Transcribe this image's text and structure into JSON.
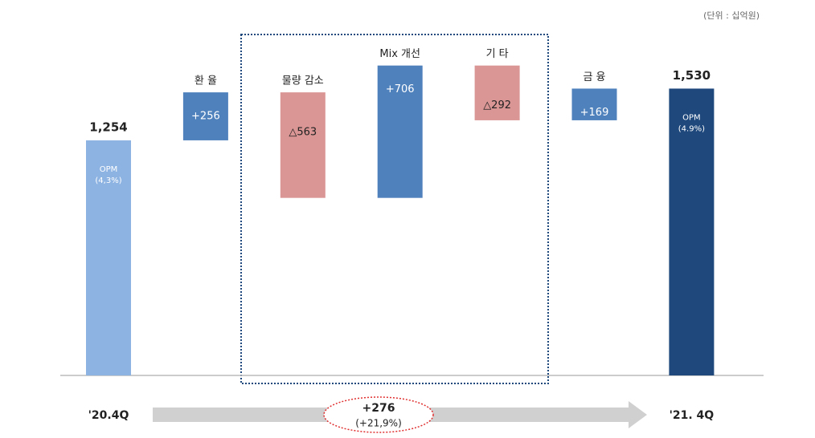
{
  "chart_data": {
    "type": "waterfall",
    "unit_note": "(단위 : 십억원)",
    "categories": [
      "'20.4Q",
      "환 율",
      "물량 감소",
      "Mix 개선",
      "기 타",
      "금 융",
      "'21. 4Q"
    ],
    "measure": [
      "absolute",
      "relative",
      "relative",
      "relative",
      "relative",
      "relative",
      "total"
    ],
    "values": [
      1254,
      256,
      -563,
      706,
      -292,
      169,
      1530
    ],
    "value_labels": [
      "1,254",
      "+256",
      "△563",
      "+706",
      "△292",
      "+169",
      "1,530"
    ],
    "colors": [
      "#8db3e2",
      "#4f81bd",
      "#da9694",
      "#4f81bd",
      "#da9694",
      "#4f81bd",
      "#1f497d"
    ],
    "bar_notes": [
      [
        "OPM",
        "(4,3%)"
      ],
      null,
      null,
      null,
      null,
      null,
      [
        "OPM",
        "(4.9%)"
      ]
    ],
    "change_label": "+276",
    "change_pct": "(+21,9%)"
  }
}
